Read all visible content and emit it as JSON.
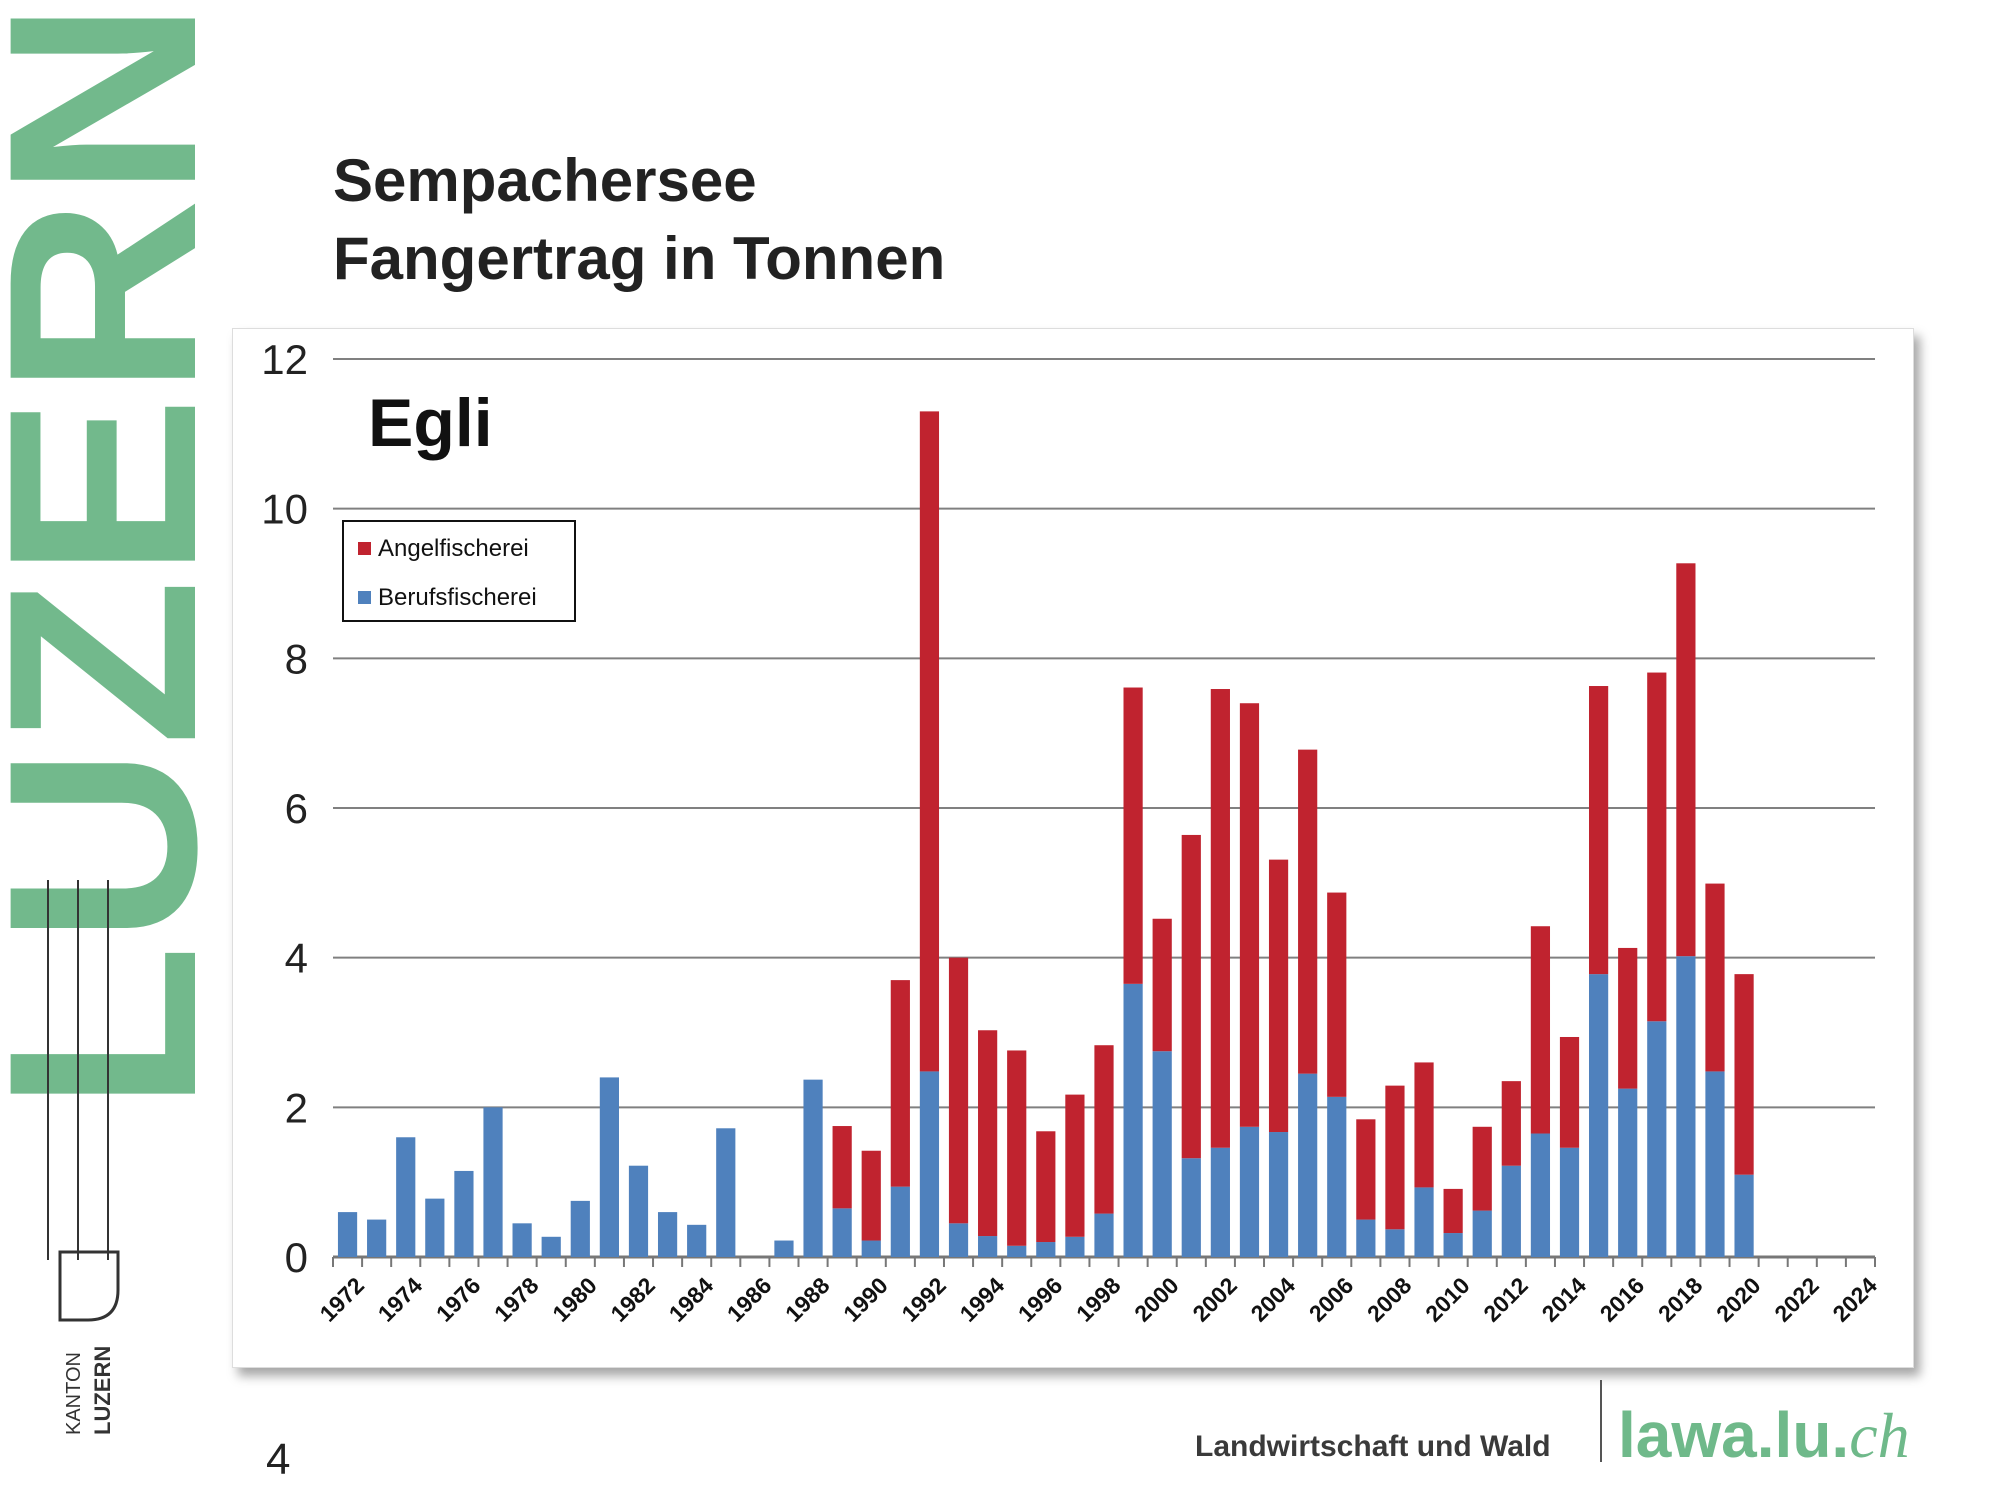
{
  "brand": {
    "word": "LUZERN",
    "color": "#72b98c"
  },
  "kanton_logo": {
    "line1": "KANTON",
    "line2": "LUZERN"
  },
  "title": {
    "line1": "Sempachersee",
    "line2": "Fangertrag in Tonnen"
  },
  "page_number": "4",
  "footer": {
    "department": "Landwirtschaft und Wald",
    "url_main": "lawa.lu.",
    "url_suffix": "ch"
  },
  "chart_data": {
    "type": "bar",
    "stacked": true,
    "title": "Egli",
    "xlabel": "",
    "ylabel": "",
    "ylim": [
      0,
      12
    ],
    "yticks": [
      "0",
      "2",
      "4",
      "6",
      "8",
      "10",
      "12"
    ],
    "grid": true,
    "legend_position": "top-left",
    "x_tick_labels": [
      "1972",
      "1974",
      "1976",
      "1978",
      "1980",
      "1982",
      "1984",
      "1986",
      "1988",
      "1990",
      "1992",
      "1994",
      "1996",
      "1998",
      "2000",
      "2002",
      "2004",
      "2006",
      "2008",
      "2010",
      "2012",
      "2014",
      "2016",
      "2018",
      "2020",
      "2022",
      "2024"
    ],
    "categories": [
      1972,
      1973,
      1974,
      1975,
      1976,
      1977,
      1978,
      1979,
      1980,
      1981,
      1982,
      1983,
      1984,
      1985,
      1986,
      1987,
      1988,
      1989,
      1990,
      1991,
      1992,
      1993,
      1994,
      1995,
      1996,
      1997,
      1998,
      1999,
      2000,
      2001,
      2002,
      2003,
      2004,
      2005,
      2006,
      2007,
      2008,
      2009,
      2010,
      2011,
      2012,
      2013,
      2014,
      2015,
      2016,
      2017,
      2018,
      2019,
      2020,
      2021,
      2022,
      2023,
      2024
    ],
    "series": [
      {
        "name": "Berufsfischerei",
        "color": "#4f81bd",
        "values": [
          0.6,
          0.5,
          1.6,
          0.78,
          1.15,
          2.0,
          0.45,
          0.27,
          0.75,
          2.4,
          1.22,
          0.6,
          0.43,
          1.72,
          0,
          0.22,
          2.37,
          0.65,
          0.22,
          0.94,
          2.48,
          0.45,
          0.28,
          0.15,
          0.2,
          0.27,
          0.58,
          3.65,
          2.75,
          1.32,
          1.46,
          1.74,
          1.67,
          2.45,
          2.14,
          0.5,
          0.37,
          0.93,
          0.32,
          0.62,
          1.22,
          1.65,
          1.46,
          3.78,
          2.25,
          3.15,
          4.02,
          2.48,
          1.1,
          0,
          0,
          0,
          0
        ]
      },
      {
        "name": "Angelfischerei",
        "color": "#c0232f",
        "values": [
          0,
          0,
          0,
          0,
          0,
          0,
          0,
          0,
          0,
          0,
          0,
          0,
          0,
          0,
          0,
          0,
          0,
          1.1,
          1.2,
          2.76,
          8.82,
          3.55,
          2.75,
          2.61,
          1.48,
          1.9,
          2.25,
          3.96,
          1.77,
          4.32,
          6.13,
          5.66,
          3.64,
          4.33,
          2.73,
          1.34,
          1.92,
          1.67,
          0.59,
          1.12,
          1.13,
          2.77,
          1.48,
          3.85,
          1.88,
          4.66,
          5.25,
          2.51,
          2.68,
          0,
          0,
          0,
          0
        ]
      }
    ]
  }
}
